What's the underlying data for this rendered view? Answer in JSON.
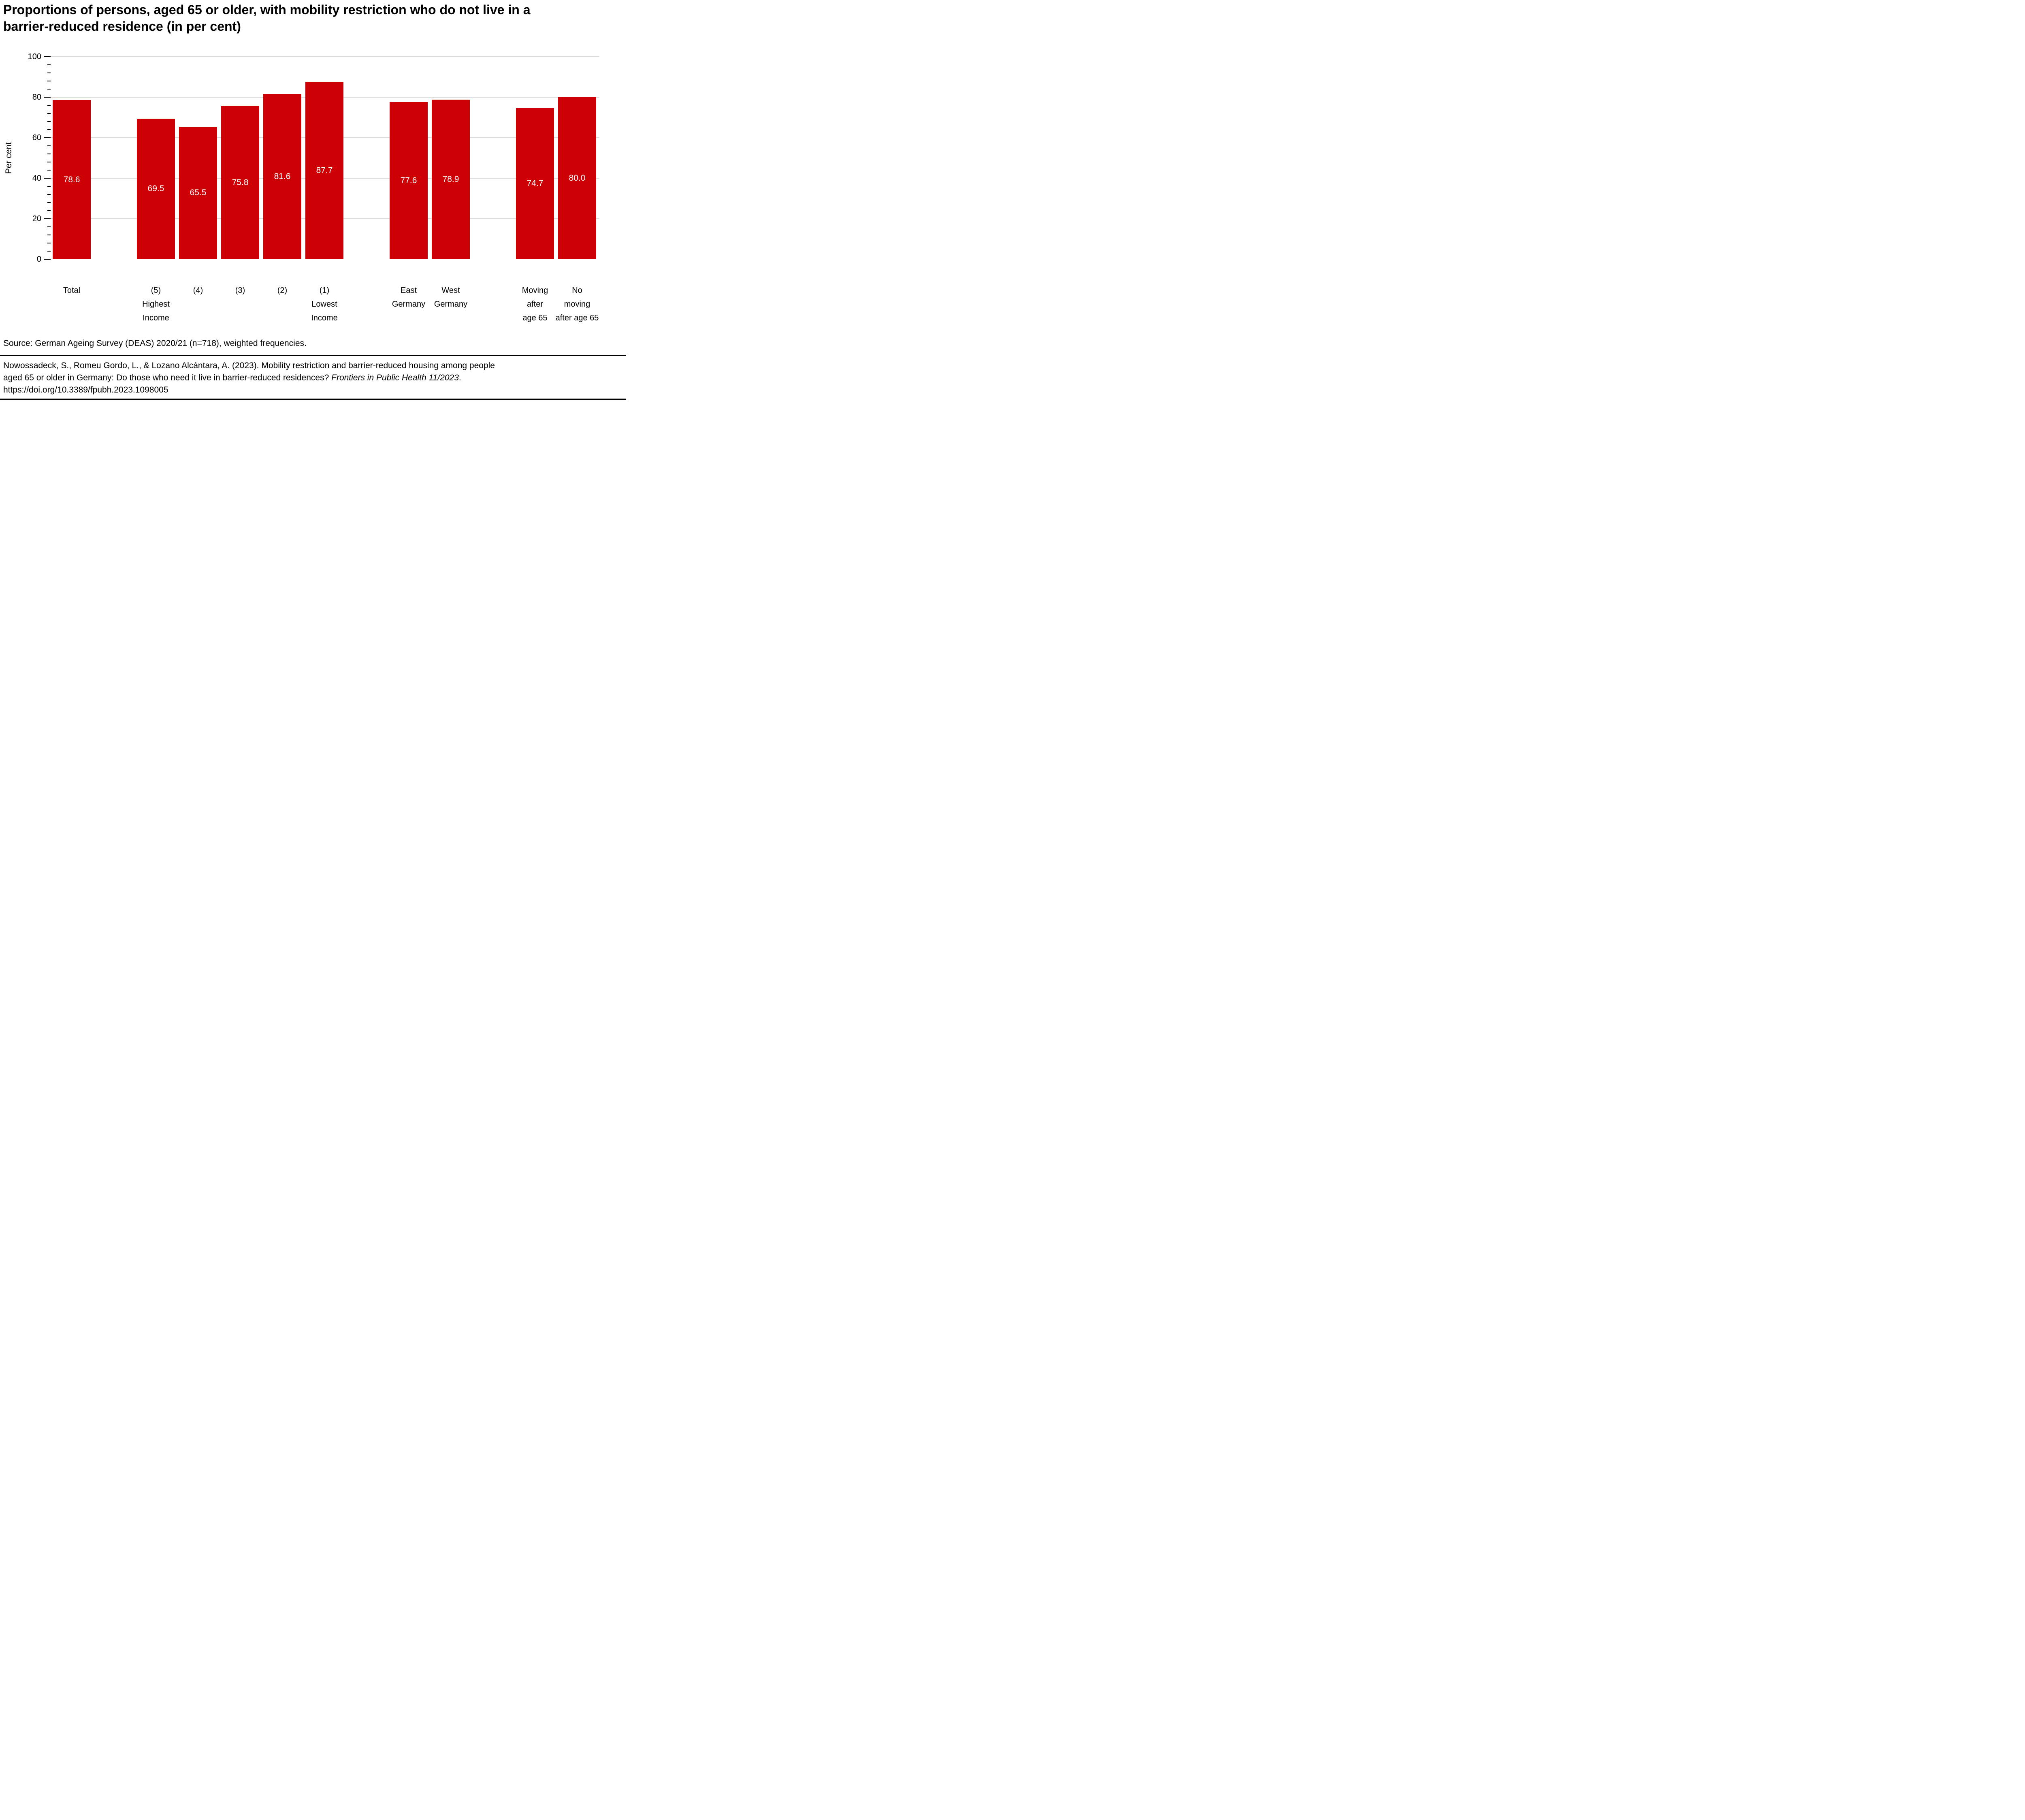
{
  "chart_data": {
    "type": "bar",
    "title": "Proportions of persons, aged 65 or older, with mobility restriction who do not live in a barrier-reduced residence (in per cent)",
    "ylabel": "Per cent",
    "xlabel": "",
    "ylim": [
      0,
      100
    ],
    "yticks_major": [
      0,
      20,
      40,
      60,
      80,
      100
    ],
    "y_minor_step": 4,
    "grid": true,
    "grid_color": "#D9D9D9",
    "bar_color": "#CC0005",
    "value_label_color": "#FFFFFF",
    "legend": "none",
    "categories": [
      "Total",
      "(5) Highest Income",
      "(4)",
      "(3)",
      "(2)",
      "(1) Lowest Income",
      "East Germany",
      "West Germany",
      "Moving after age 65",
      "No moving after age 65"
    ],
    "values": [
      78.6,
      69.5,
      65.5,
      75.8,
      81.6,
      87.7,
      77.6,
      78.9,
      74.7,
      80.0
    ],
    "bars": [
      {
        "label_lines": [
          "Total"
        ],
        "value": 78.6,
        "group": 0
      },
      {
        "label_lines": [
          "(5)",
          "Highest",
          "Income"
        ],
        "value": 69.5,
        "group": 1
      },
      {
        "label_lines": [
          "(4)"
        ],
        "value": 65.5,
        "group": 1
      },
      {
        "label_lines": [
          "(3)"
        ],
        "value": 75.8,
        "group": 1
      },
      {
        "label_lines": [
          "(2)"
        ],
        "value": 81.6,
        "group": 1
      },
      {
        "label_lines": [
          "(1)",
          "Lowest",
          "Income"
        ],
        "value": 87.7,
        "group": 1
      },
      {
        "label_lines": [
          "East",
          "Germany"
        ],
        "value": 77.6,
        "group": 2
      },
      {
        "label_lines": [
          "West",
          "Germany"
        ],
        "value": 78.9,
        "group": 2
      },
      {
        "label_lines": [
          "Moving",
          "after",
          "age 65"
        ],
        "value": 74.7,
        "group": 3
      },
      {
        "label_lines": [
          "No",
          "moving",
          "after age 65"
        ],
        "value": 80.0,
        "group": 3
      }
    ]
  },
  "source": "Source: German Ageing Survey (DEAS) 2020/21 (n=718), weighted frequencies.",
  "citation": {
    "line1": "Nowossadeck, S., Romeu Gordo, L., & Lozano Alcántara, A. (2023). Mobility restriction and barrier-reduced housing among people",
    "line2_plain": "aged 65 or older in Germany: Do those who need it live in barrier-reduced residences? ",
    "line2_italic": "Frontiers in Public Health 11/2023",
    "line2_end": ".",
    "line3": "https://doi.org/10.3389/fpubh.2023.1098005"
  }
}
